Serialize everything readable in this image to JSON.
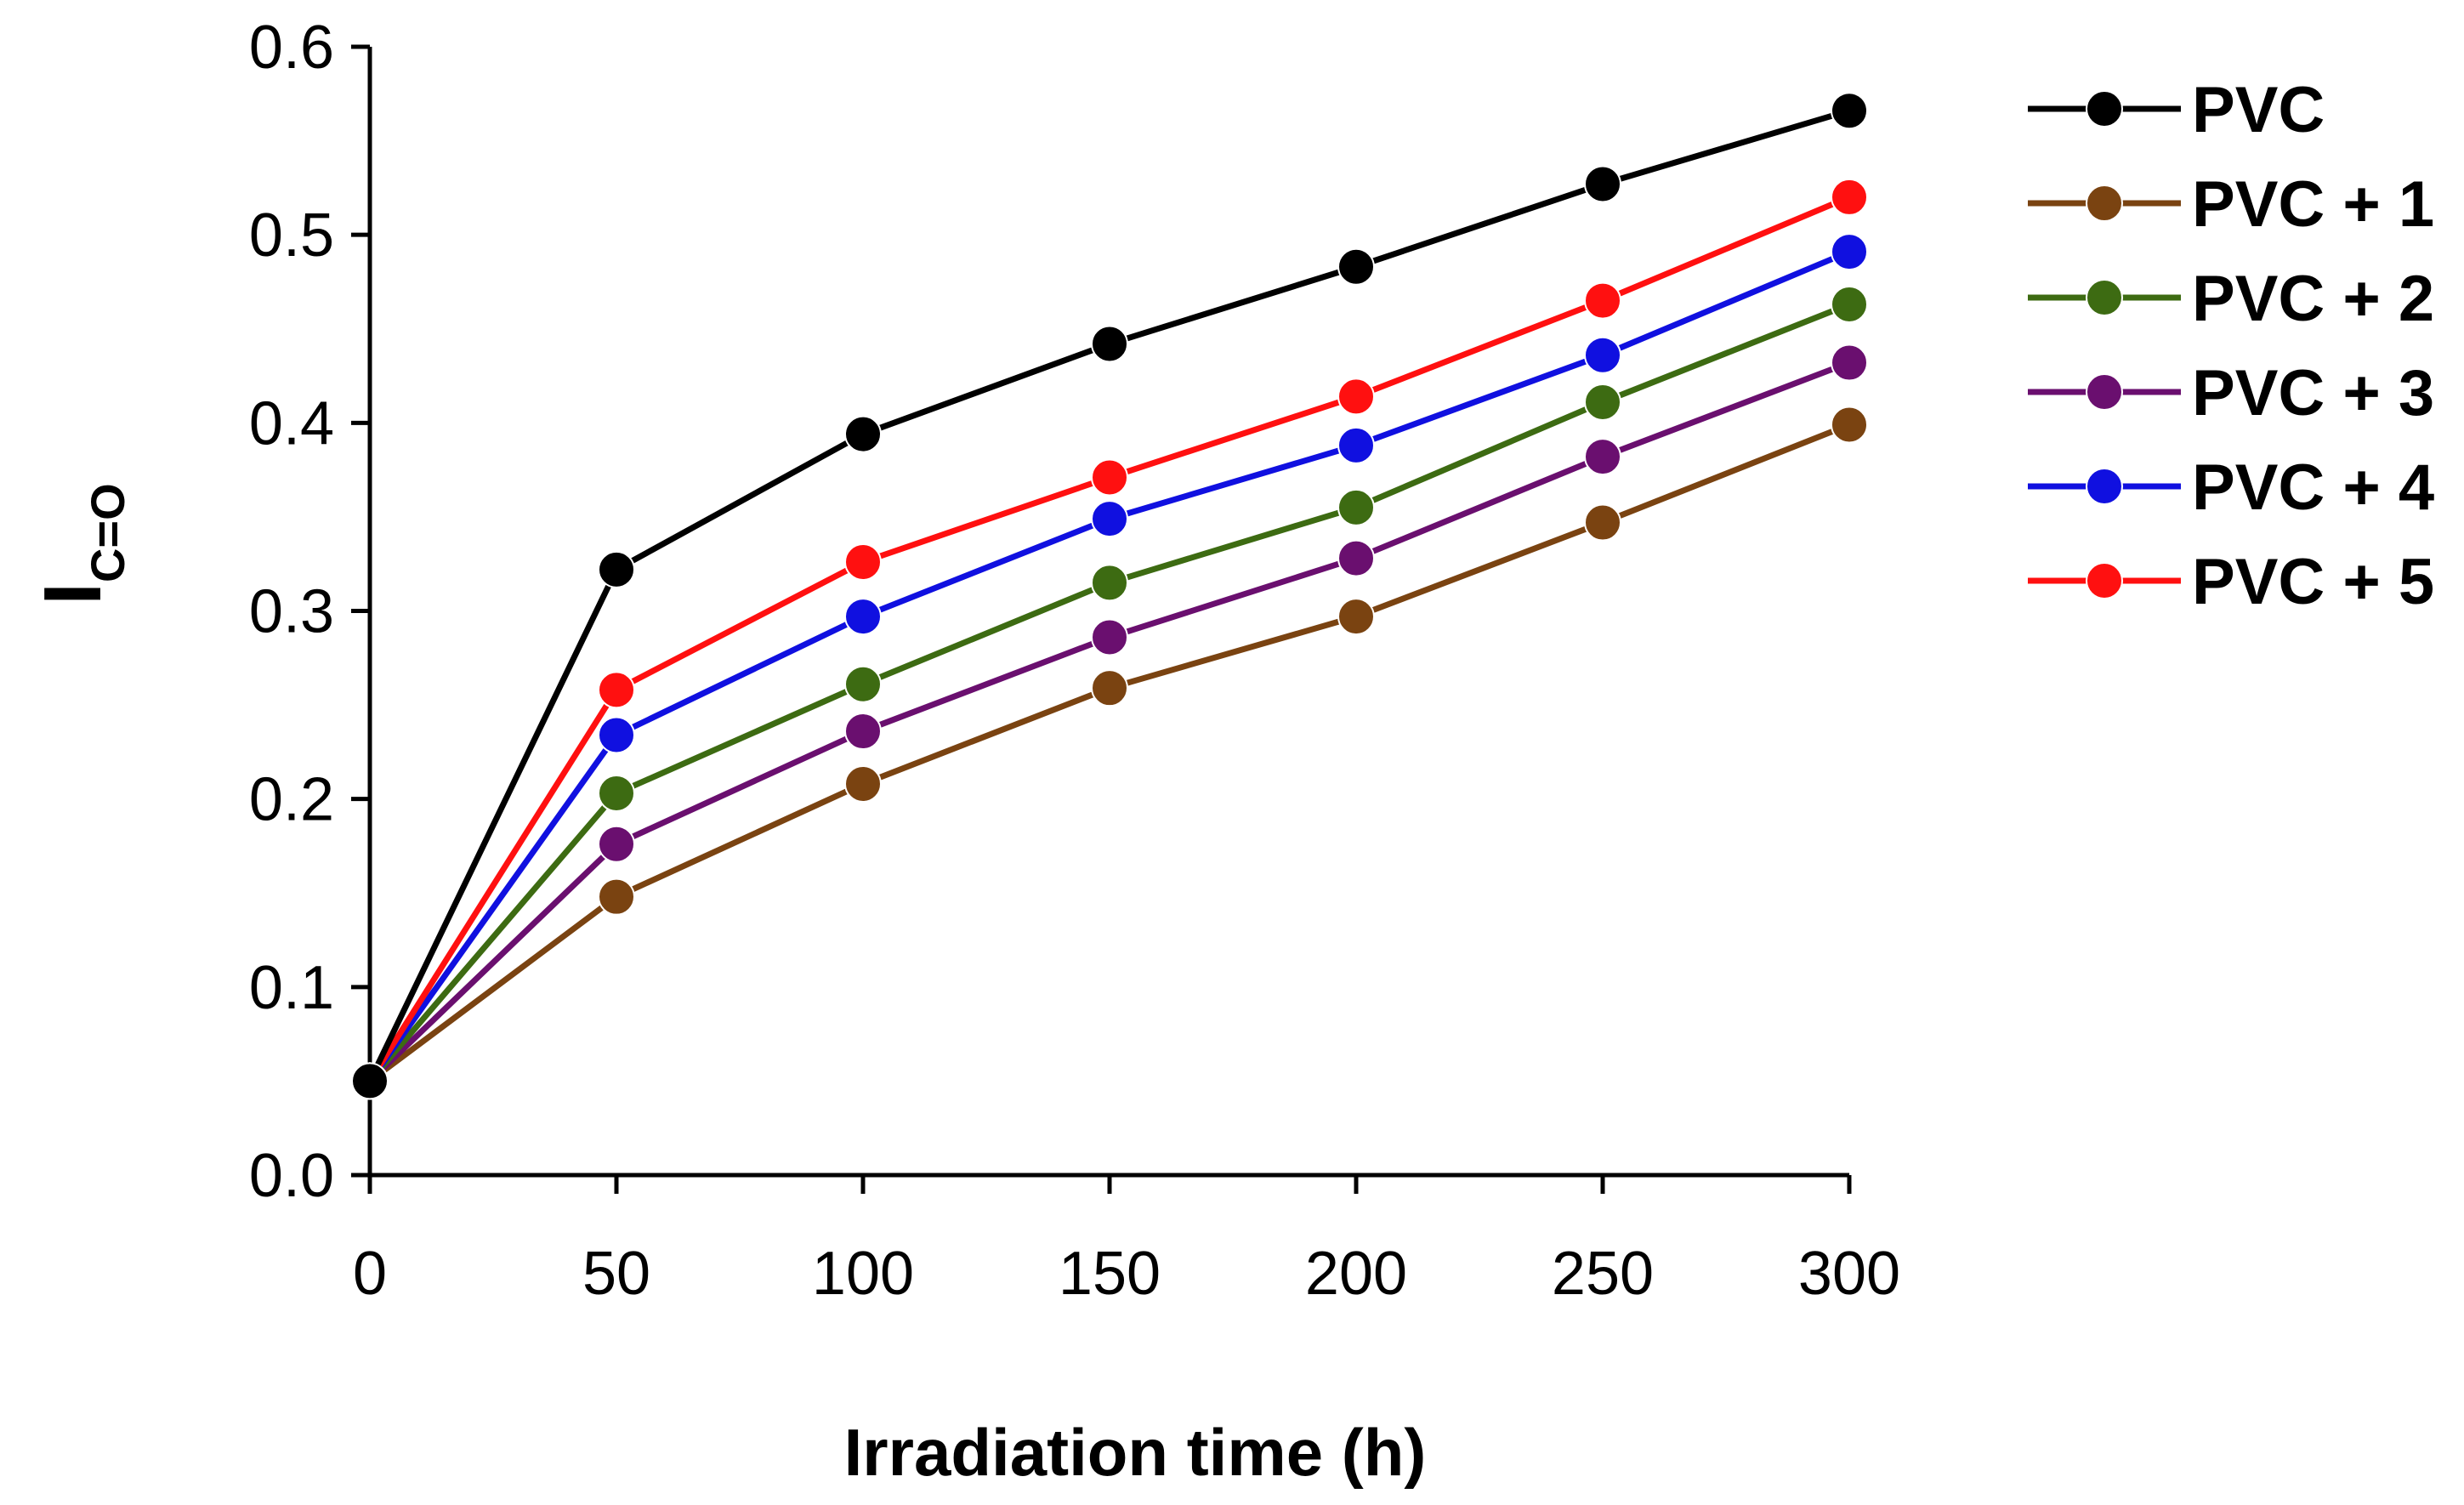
{
  "chart_data": {
    "type": "line",
    "title": "",
    "xlabel": "Irradiation time (h)",
    "ylabel_main": "I",
    "ylabel_sub": "C=O",
    "x": [
      0,
      50,
      100,
      150,
      200,
      250,
      300
    ],
    "xlim": [
      0,
      300
    ],
    "ylim": [
      0,
      0.6
    ],
    "xticks": [
      "0",
      "50",
      "100",
      "150",
      "200",
      "250",
      "300"
    ],
    "yticks": [
      "0.0",
      "0.1",
      "0.2",
      "0.3",
      "0.4",
      "0.5",
      "0.6"
    ],
    "legend_position": "right",
    "series": [
      {
        "name": "PVC",
        "color": "#000000",
        "values": [
          0.05,
          0.322,
          0.394,
          0.442,
          0.483,
          0.527,
          0.566
        ]
      },
      {
        "name": "PVC + 1",
        "color": "#7a4311",
        "values": [
          0.05,
          0.148,
          0.208,
          0.259,
          0.297,
          0.347,
          0.399
        ]
      },
      {
        "name": "PVC + 2",
        "color": "#3d6b12",
        "values": [
          0.05,
          0.203,
          0.261,
          0.315,
          0.355,
          0.411,
          0.463
        ]
      },
      {
        "name": "PVC + 3",
        "color": "#6a0f6f",
        "values": [
          0.05,
          0.176,
          0.236,
          0.286,
          0.328,
          0.382,
          0.432
        ]
      },
      {
        "name": "PVC + 4",
        "color": "#1010e0",
        "values": [
          0.05,
          0.234,
          0.297,
          0.349,
          0.388,
          0.436,
          0.491
        ]
      },
      {
        "name": "PVC + 5",
        "color": "#ff1010",
        "values": [
          0.05,
          0.258,
          0.326,
          0.371,
          0.414,
          0.465,
          0.52
        ]
      }
    ]
  }
}
